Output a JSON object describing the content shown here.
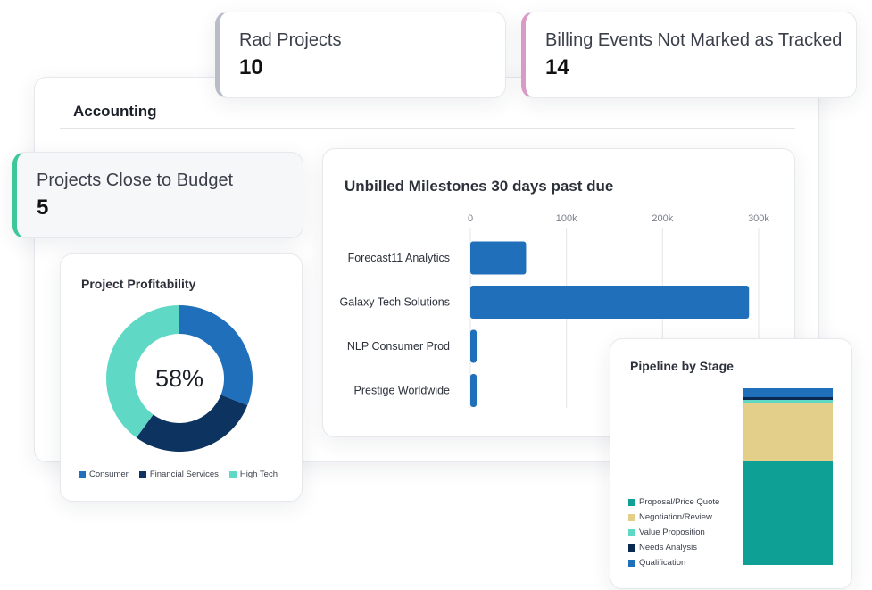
{
  "kpis": {
    "rad_projects": {
      "label": "Rad Projects",
      "value": "10"
    },
    "billing_events": {
      "label": "Billing Events Not Marked as Tracked",
      "value": "14"
    },
    "close_to_budget": {
      "label": "Projects Close to Budget",
      "value": "5"
    }
  },
  "main": {
    "tab": "Accounting"
  },
  "colors": {
    "blue": "#1f6fbb",
    "navy": "#0d3460",
    "teal": "#5fd9c5",
    "pipe_teal": "#0e9f95",
    "tan": "#e4cf8a",
    "light_teal": "#5fd9c5",
    "dark_navy": "#0b2a52",
    "qualification_blue": "#1f6fbb"
  },
  "chart_data": [
    {
      "type": "bar",
      "orientation": "horizontal",
      "title": "Unbilled Milestones 30 days past due",
      "categories": [
        "Forecast11 Analytics",
        "Galaxy Tech Solutions",
        "NLP Consumer Prod",
        "Prestige Worldwide"
      ],
      "values": [
        58000,
        290000,
        5000,
        5000
      ],
      "xlim": [
        0,
        300000
      ],
      "x_ticks": [
        0,
        100000,
        200000,
        300000
      ],
      "x_tick_labels": [
        "0",
        "100k",
        "200k",
        "300k"
      ],
      "grid": true
    },
    {
      "type": "pie",
      "variant": "donut",
      "title": "Project Profitability",
      "center_label": "58%",
      "series": [
        {
          "name": "Consumer",
          "value": 31,
          "color": "#1f6fbb"
        },
        {
          "name": "Financial Services",
          "value": 29,
          "color": "#0d3460"
        },
        {
          "name": "High Tech",
          "value": 40,
          "color": "#5fd9c5"
        }
      ],
      "legend": "bottom"
    },
    {
      "type": "bar",
      "variant": "stacked",
      "title": "Pipeline by Stage",
      "series": [
        {
          "name": "Proposal/Price Quote",
          "value": 58,
          "color": "#0e9f95"
        },
        {
          "name": "Negotiation/Review",
          "value": 33,
          "color": "#e4cf8a"
        },
        {
          "name": "Value Proposition",
          "value": 1.5,
          "color": "#5fd9c5"
        },
        {
          "name": "Needs Analysis",
          "value": 1.5,
          "color": "#0b2a52"
        },
        {
          "name": "Qualification",
          "value": 5,
          "color": "#1f6fbb"
        }
      ],
      "legend": "left"
    }
  ]
}
